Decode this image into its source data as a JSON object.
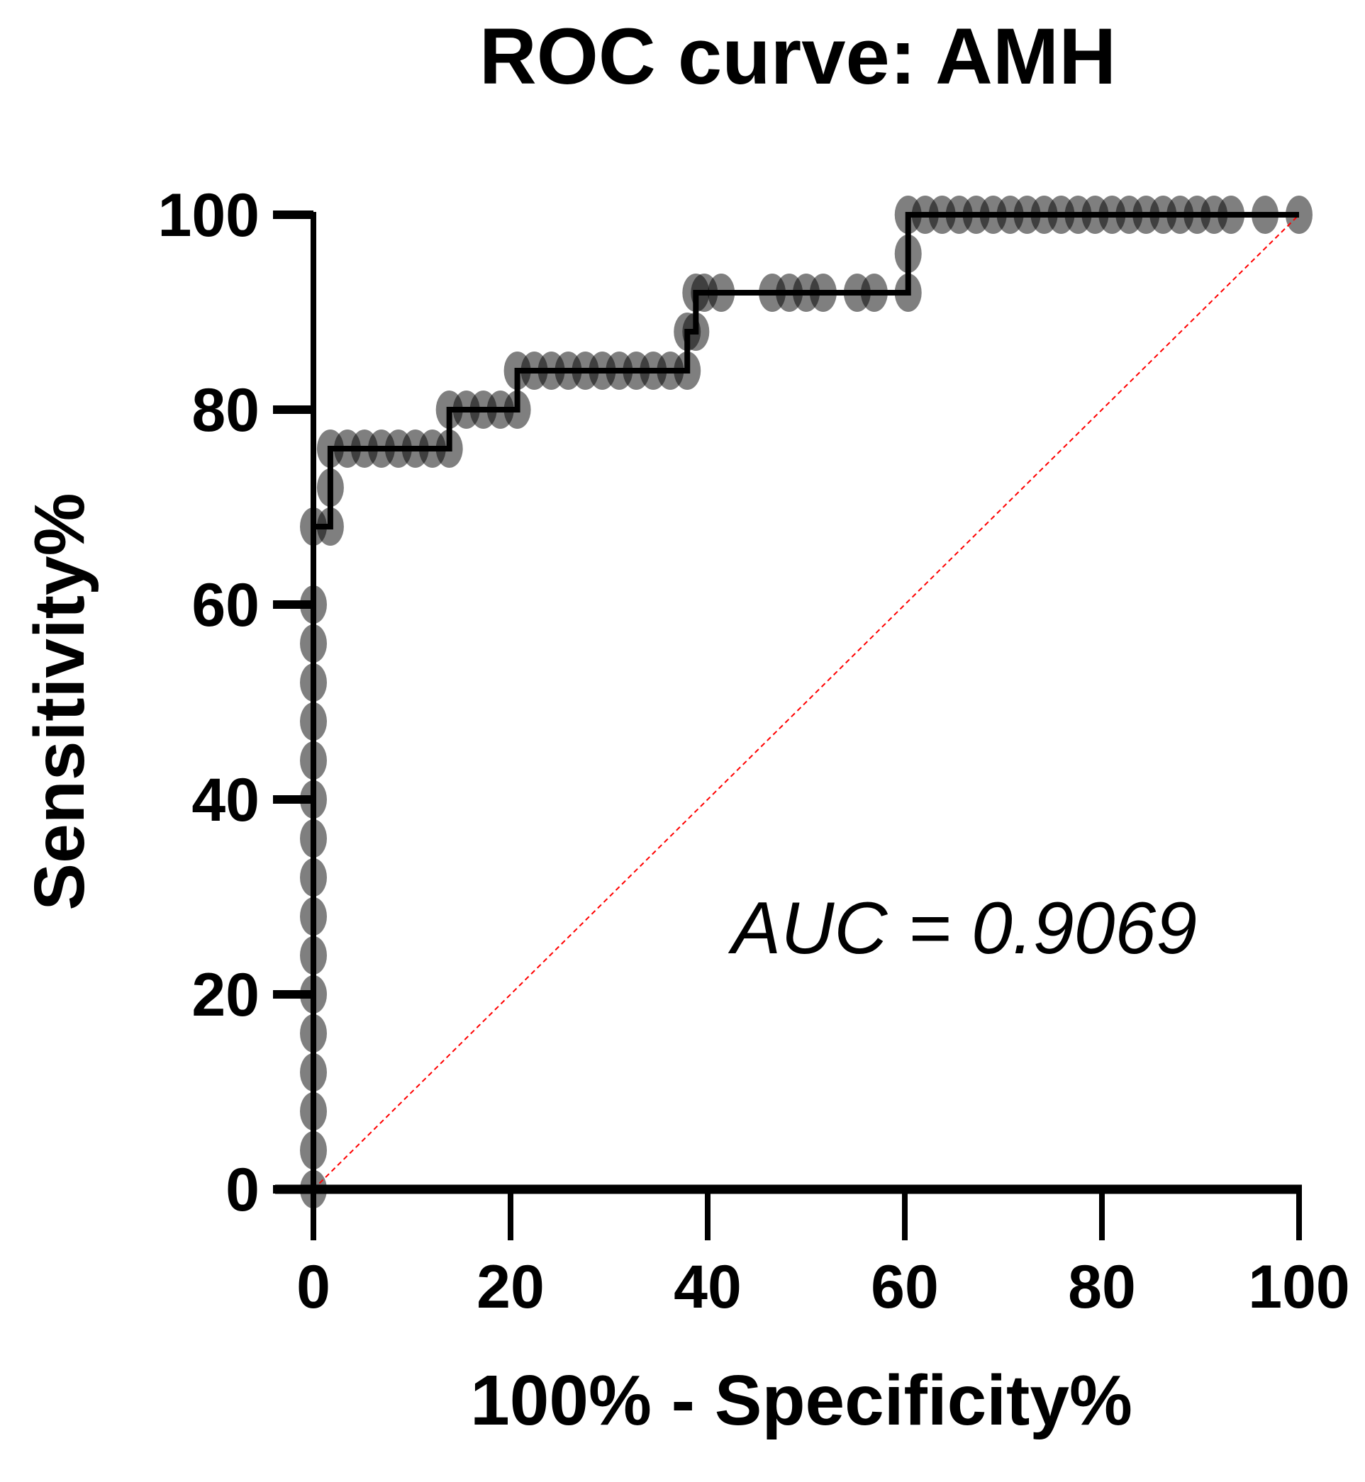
{
  "chart_data": {
    "type": "line",
    "title": "ROC curve: AMH",
    "xlabel": "100% - Specificity%",
    "ylabel": "Sensitivity%",
    "xlim": [
      0,
      100
    ],
    "ylim": [
      0,
      100
    ],
    "xticks": [
      "0",
      "20",
      "40",
      "60",
      "80",
      "100"
    ],
    "yticks": [
      "0",
      "20",
      "40",
      "60",
      "80",
      "100"
    ],
    "grid": false,
    "annotation": "AUC = 0.9069",
    "auc": 0.9069,
    "colors": {
      "curve": "#000000",
      "marker": "#000000",
      "reference": "#ff0000"
    },
    "series": [
      {
        "name": "ROC curve",
        "points": [
          [
            0,
            0
          ],
          [
            0,
            4
          ],
          [
            0,
            8
          ],
          [
            0,
            12
          ],
          [
            0,
            16
          ],
          [
            0,
            20
          ],
          [
            0,
            24
          ],
          [
            0,
            28
          ],
          [
            0,
            32
          ],
          [
            0,
            36
          ],
          [
            0,
            40
          ],
          [
            0,
            44
          ],
          [
            0,
            48
          ],
          [
            0,
            52
          ],
          [
            0,
            56
          ],
          [
            0,
            60
          ],
          [
            0,
            68
          ],
          [
            1.72,
            68
          ],
          [
            1.72,
            72
          ],
          [
            1.72,
            76
          ],
          [
            3.45,
            76
          ],
          [
            5.17,
            76
          ],
          [
            6.9,
            76
          ],
          [
            8.62,
            76
          ],
          [
            10.34,
            76
          ],
          [
            12.07,
            76
          ],
          [
            13.79,
            76
          ],
          [
            13.79,
            80
          ],
          [
            15.52,
            80
          ],
          [
            17.24,
            80
          ],
          [
            18.97,
            80
          ],
          [
            20.69,
            80
          ],
          [
            20.69,
            84
          ],
          [
            22.41,
            84
          ],
          [
            24.14,
            84
          ],
          [
            25.86,
            84
          ],
          [
            27.59,
            84
          ],
          [
            29.31,
            84
          ],
          [
            31.03,
            84
          ],
          [
            32.76,
            84
          ],
          [
            34.48,
            84
          ],
          [
            36.21,
            84
          ],
          [
            37.93,
            84
          ],
          [
            37.93,
            88
          ],
          [
            38.8,
            88
          ],
          [
            38.8,
            92
          ],
          [
            39.66,
            92
          ],
          [
            41.38,
            92
          ],
          [
            46.55,
            92
          ],
          [
            48.28,
            92
          ],
          [
            50,
            92
          ],
          [
            51.72,
            92
          ],
          [
            55.17,
            92
          ],
          [
            56.9,
            92
          ],
          [
            60.34,
            92
          ],
          [
            60.34,
            96
          ],
          [
            60.34,
            100
          ],
          [
            62.07,
            100
          ],
          [
            63.79,
            100
          ],
          [
            65.52,
            100
          ],
          [
            67.24,
            100
          ],
          [
            68.97,
            100
          ],
          [
            70.69,
            100
          ],
          [
            72.41,
            100
          ],
          [
            74.14,
            100
          ],
          [
            75.86,
            100
          ],
          [
            77.59,
            100
          ],
          [
            79.31,
            100
          ],
          [
            81.03,
            100
          ],
          [
            82.76,
            100
          ],
          [
            84.48,
            100
          ],
          [
            86.21,
            100
          ],
          [
            87.93,
            100
          ],
          [
            89.66,
            100
          ],
          [
            91.38,
            100
          ],
          [
            93.1,
            100
          ],
          [
            96.55,
            100
          ],
          [
            100,
            100
          ]
        ]
      },
      {
        "name": "Reference line",
        "points": [
          [
            0,
            0
          ],
          [
            100,
            100
          ]
        ]
      }
    ]
  }
}
